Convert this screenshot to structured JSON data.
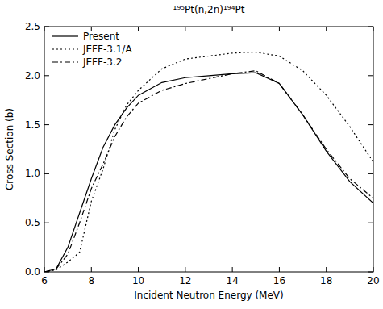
{
  "chart_data": {
    "type": "line",
    "title": "¹⁹⁵Pt(n,2n)¹⁹⁴Pt",
    "x_label": "Incident Neutron Energy (MeV)",
    "y_label": "Cross Section (b)",
    "x": [
      6,
      6.5,
      7,
      7.5,
      8,
      8.5,
      9,
      9.5,
      10,
      11,
      12,
      13,
      14,
      15,
      16,
      17,
      18,
      19,
      20
    ],
    "series": [
      {
        "name": "Present",
        "color": "#000000",
        "line_style": "solid",
        "values": [
          0,
          0.03,
          0.25,
          0.6,
          0.95,
          1.27,
          1.5,
          1.67,
          1.8,
          1.93,
          1.98,
          2.0,
          2.02,
          2.03,
          1.92,
          1.6,
          1.23,
          0.92,
          0.7
        ]
      },
      {
        "name": "JEFF-3.1/A",
        "color": "#000000",
        "line_style": "dotted",
        "values": [
          0,
          0.02,
          0.1,
          0.2,
          0.72,
          1.05,
          1.45,
          1.7,
          1.85,
          2.07,
          2.17,
          2.2,
          2.23,
          2.24,
          2.2,
          2.05,
          1.8,
          1.48,
          1.12
        ]
      },
      {
        "name": "JEFF-3.2",
        "color": "#000000",
        "line_style": "dashdot",
        "values": [
          0,
          0.03,
          0.18,
          0.5,
          0.85,
          1.1,
          1.38,
          1.58,
          1.72,
          1.85,
          1.92,
          1.97,
          2.02,
          2.05,
          1.92,
          1.6,
          1.25,
          0.95,
          0.75
        ]
      }
    ],
    "xlim": [
      6,
      20
    ],
    "ylim": [
      0,
      2.5
    ],
    "xticks": [
      6,
      8,
      10,
      12,
      14,
      16,
      18,
      20
    ],
    "yticks": [
      {
        "value": 0,
        "label": "0.0"
      },
      {
        "value": 0.5,
        "label": "0.5"
      },
      {
        "value": 1,
        "label": "1.0"
      },
      {
        "value": 1.5,
        "label": "1.5"
      },
      {
        "value": 2,
        "label": "2.0"
      },
      {
        "value": 2.5,
        "label": "2.5"
      }
    ],
    "legend": "top-left",
    "grid": false
  }
}
